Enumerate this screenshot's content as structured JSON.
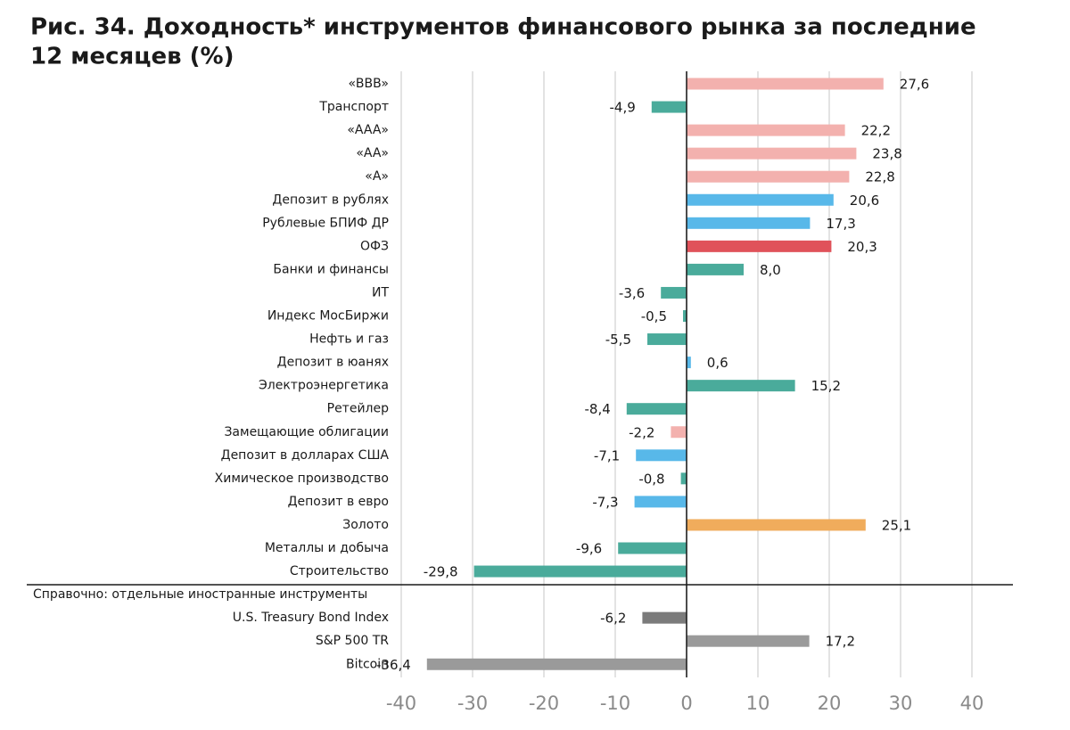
{
  "chart_data": {
    "type": "bar",
    "orientation": "horizontal",
    "title": [
      "Рис. 34. Доходность* инструментов финансового рынка за последние",
      "12 месяцев (%)"
    ],
    "categories": [
      "«BBB»",
      "Транспорт",
      "«AAA»",
      "«AA»",
      "«A»",
      "Депозит в рублях",
      "Рублевые БПИФ ДР",
      "ОФЗ",
      "Банки и финансы",
      "ИТ",
      "Индекс МосБиржи",
      "Нефть и газ",
      "Депозит в юанях",
      "Электроэнергетика",
      "Ретейлер",
      "Замещающие облигации",
      "Депозит в долларах США",
      "Химическое производство",
      "Депозит в евро",
      "Золото",
      "Металлы и добыча",
      "Строительство",
      "U.S. Treasury Bond Index",
      "S&P 500 TR",
      "Bitcoin"
    ],
    "values": [
      27.6,
      -4.9,
      22.2,
      23.8,
      22.8,
      20.6,
      17.3,
      20.3,
      8.0,
      -3.6,
      -0.5,
      -5.5,
      0.6,
      15.2,
      -8.4,
      -2.2,
      -7.1,
      -0.8,
      -7.3,
      25.1,
      -9.6,
      -29.8,
      -6.2,
      17.2,
      -36.4
    ],
    "value_labels": [
      "27,6",
      "-4,9",
      "22,2",
      "23,8",
      "22,8",
      "20,6",
      "17,3",
      "20,3",
      "8,0",
      "-3,6",
      "-0,5",
      "-5,5",
      "0,6",
      "15,2",
      "-8,4",
      "-2,2",
      "-7,1",
      "-0,8",
      "-7,3",
      "25,1",
      "-9,6",
      "-29,8",
      "-6,2",
      "17,2",
      "-36,4"
    ],
    "colors": [
      "#f3b1ae",
      "#4aab9b",
      "#f3b1ae",
      "#f3b1ae",
      "#f3b1ae",
      "#58b8e9",
      "#58b8e9",
      "#e0525a",
      "#4aab9b",
      "#4aab9b",
      "#4aab9b",
      "#4aab9b",
      "#58b8e9",
      "#4aab9b",
      "#4aab9b",
      "#f3b1ae",
      "#58b8e9",
      "#4aab9b",
      "#58b8e9",
      "#f0ac5c",
      "#4aab9b",
      "#4aab9b",
      "#7b7b7b",
      "#9a9a9a",
      "#9a9a9a"
    ],
    "section_label": "Справочно: отдельные иностранные инструменты",
    "section_start": 22,
    "xlim": [
      -40,
      40
    ],
    "xticks": [
      -40,
      -30,
      -20,
      -10,
      0,
      10,
      20,
      30,
      40
    ],
    "grid": true
  }
}
